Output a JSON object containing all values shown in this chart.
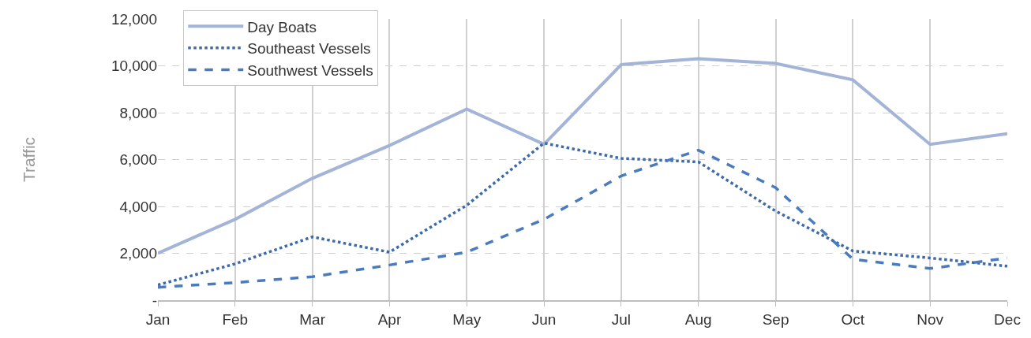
{
  "chart_data": {
    "type": "line",
    "ylabel": "Traffic",
    "categories": [
      "Jan",
      "Feb",
      "Mar",
      "Apr",
      "May",
      "Jun",
      "Jul",
      "Aug",
      "Sep",
      "Oct",
      "Nov",
      "Dec"
    ],
    "series": [
      {
        "name": "Day Boats",
        "color": "#a3b4d6",
        "line_style": "solid",
        "values": [
          2000,
          3450,
          5200,
          6600,
          8150,
          6650,
          10050,
          10300,
          10100,
          9400,
          6650,
          7100
        ]
      },
      {
        "name": "Southeast Vessels",
        "color": "#3d6aa8",
        "line_style": "dotted",
        "values": [
          650,
          1550,
          2700,
          2050,
          4050,
          6700,
          6050,
          5900,
          3800,
          2100,
          1800,
          1450
        ]
      },
      {
        "name": "Southwest Vessels",
        "color": "#4a7bbf",
        "line_style": "dashed",
        "values": [
          550,
          750,
          1000,
          1500,
          2050,
          3450,
          5300,
          6400,
          4800,
          1750,
          1350,
          1800
        ]
      }
    ],
    "ylim": [
      0,
      12000
    ],
    "yticks": [
      {
        "value": 0,
        "label": "-"
      },
      {
        "value": 2000,
        "label": "2,000"
      },
      {
        "value": 4000,
        "label": "4,000"
      },
      {
        "value": 6000,
        "label": "6,000"
      },
      {
        "value": 8000,
        "label": "8,000"
      },
      {
        "value": 10000,
        "label": "10,000"
      },
      {
        "value": 12000,
        "label": "12,000"
      }
    ],
    "grid": true,
    "legend": "top left",
    "marker": "none"
  }
}
